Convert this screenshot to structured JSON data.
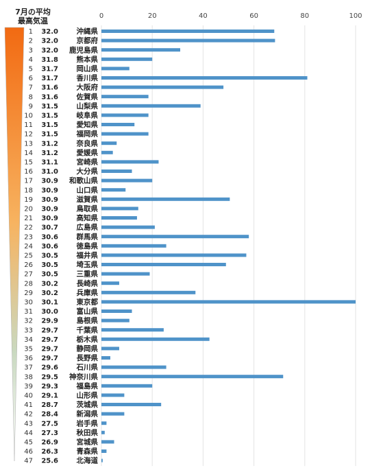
{
  "header": {
    "line1": "7月の平均",
    "line2": "最高気温"
  },
  "colors": {
    "bar": "#4f93c9",
    "grid": "#e3e3e3",
    "gradient_top": "#f26a12",
    "gradient_bottom": "#ffffff"
  },
  "chart_data": {
    "type": "bar",
    "orientation": "horizontal",
    "title": "",
    "xlabel": "",
    "ylabel": "",
    "xlim": [
      0,
      100
    ],
    "xticks": [
      0,
      20,
      40,
      60,
      80,
      100
    ],
    "grid": true,
    "rows": [
      {
        "rank": "1",
        "temp": "32.0",
        "name": "沖縄県",
        "value": 68
      },
      {
        "rank": "2",
        "temp": "32.0",
        "name": "京都府",
        "value": 68.3
      },
      {
        "rank": "3",
        "temp": "32.0",
        "name": "鹿児島県",
        "value": 31
      },
      {
        "rank": "4",
        "temp": "31.8",
        "name": "熊本県",
        "value": 20
      },
      {
        "rank": "5",
        "temp": "31.7",
        "name": "岡山県",
        "value": 11
      },
      {
        "rank": "6",
        "temp": "31.7",
        "name": "香川県",
        "value": 81
      },
      {
        "rank": "7",
        "temp": "31.6",
        "name": "大阪府",
        "value": 48
      },
      {
        "rank": "8",
        "temp": "31.6",
        "name": "佐賀県",
        "value": 18.5
      },
      {
        "rank": "9",
        "temp": "31.5",
        "name": "山梨県",
        "value": 39
      },
      {
        "rank": "10",
        "temp": "31.5",
        "name": "岐阜県",
        "value": 18.5
      },
      {
        "rank": "11",
        "temp": "31.5",
        "name": "愛知県",
        "value": 13
      },
      {
        "rank": "12",
        "temp": "31.5",
        "name": "福岡県",
        "value": 18.5
      },
      {
        "rank": "13",
        "temp": "31.2",
        "name": "奈良県",
        "value": 6
      },
      {
        "rank": "14",
        "temp": "31.2",
        "name": "愛媛県",
        "value": 4.5
      },
      {
        "rank": "15",
        "temp": "31.1",
        "name": "宮崎県",
        "value": 22.5
      },
      {
        "rank": "16",
        "temp": "31.0",
        "name": "大分県",
        "value": 12
      },
      {
        "rank": "17",
        "temp": "30.9",
        "name": "和歌山県",
        "value": 20
      },
      {
        "rank": "18",
        "temp": "30.9",
        "name": "山口県",
        "value": 9.5
      },
      {
        "rank": "19",
        "temp": "30.9",
        "name": "滋賀県",
        "value": 50.5
      },
      {
        "rank": "20",
        "temp": "30.9",
        "name": "鳥取県",
        "value": 14.5
      },
      {
        "rank": "21",
        "temp": "30.9",
        "name": "高知県",
        "value": 14
      },
      {
        "rank": "22",
        "temp": "30.7",
        "name": "広島県",
        "value": 21
      },
      {
        "rank": "23",
        "temp": "30.6",
        "name": "群馬県",
        "value": 58
      },
      {
        "rank": "24",
        "temp": "30.6",
        "name": "徳島県",
        "value": 25.5
      },
      {
        "rank": "25",
        "temp": "30.5",
        "name": "福井県",
        "value": 57
      },
      {
        "rank": "26",
        "temp": "30.5",
        "name": "埼玉県",
        "value": 49
      },
      {
        "rank": "27",
        "temp": "30.5",
        "name": "三重県",
        "value": 19
      },
      {
        "rank": "28",
        "temp": "30.2",
        "name": "長崎県",
        "value": 7
      },
      {
        "rank": "29",
        "temp": "30.2",
        "name": "兵庫県",
        "value": 37
      },
      {
        "rank": "30",
        "temp": "30.1",
        "name": "東京都",
        "value": 100
      },
      {
        "rank": "31",
        "temp": "30.0",
        "name": "富山県",
        "value": 12
      },
      {
        "rank": "32",
        "temp": "29.9",
        "name": "島根県",
        "value": 11
      },
      {
        "rank": "33",
        "temp": "29.7",
        "name": "千葉県",
        "value": 24.5
      },
      {
        "rank": "34",
        "temp": "29.7",
        "name": "栃木県",
        "value": 42.5
      },
      {
        "rank": "35",
        "temp": "29.7",
        "name": "静岡県",
        "value": 7
      },
      {
        "rank": "36",
        "temp": "29.7",
        "name": "長野県",
        "value": 3.5
      },
      {
        "rank": "37",
        "temp": "29.6",
        "name": "石川県",
        "value": 25.5
      },
      {
        "rank": "38",
        "temp": "29.5",
        "name": "神奈川県",
        "value": 71.5
      },
      {
        "rank": "39",
        "temp": "29.3",
        "name": "福島県",
        "value": 20
      },
      {
        "rank": "40",
        "temp": "29.1",
        "name": "山形県",
        "value": 9
      },
      {
        "rank": "41",
        "temp": "28.7",
        "name": "茨城県",
        "value": 23.5
      },
      {
        "rank": "42",
        "temp": "28.4",
        "name": "新潟県",
        "value": 9
      },
      {
        "rank": "43",
        "temp": "27.5",
        "name": "岩手県",
        "value": 2
      },
      {
        "rank": "44",
        "temp": "27.3",
        "name": "秋田県",
        "value": 1.3
      },
      {
        "rank": "45",
        "temp": "26.9",
        "name": "宮城県",
        "value": 5
      },
      {
        "rank": "46",
        "temp": "26.3",
        "name": "青森県",
        "value": 2
      },
      {
        "rank": "47",
        "temp": "25.6",
        "name": "北海道",
        "value": 0.5
      }
    ]
  }
}
